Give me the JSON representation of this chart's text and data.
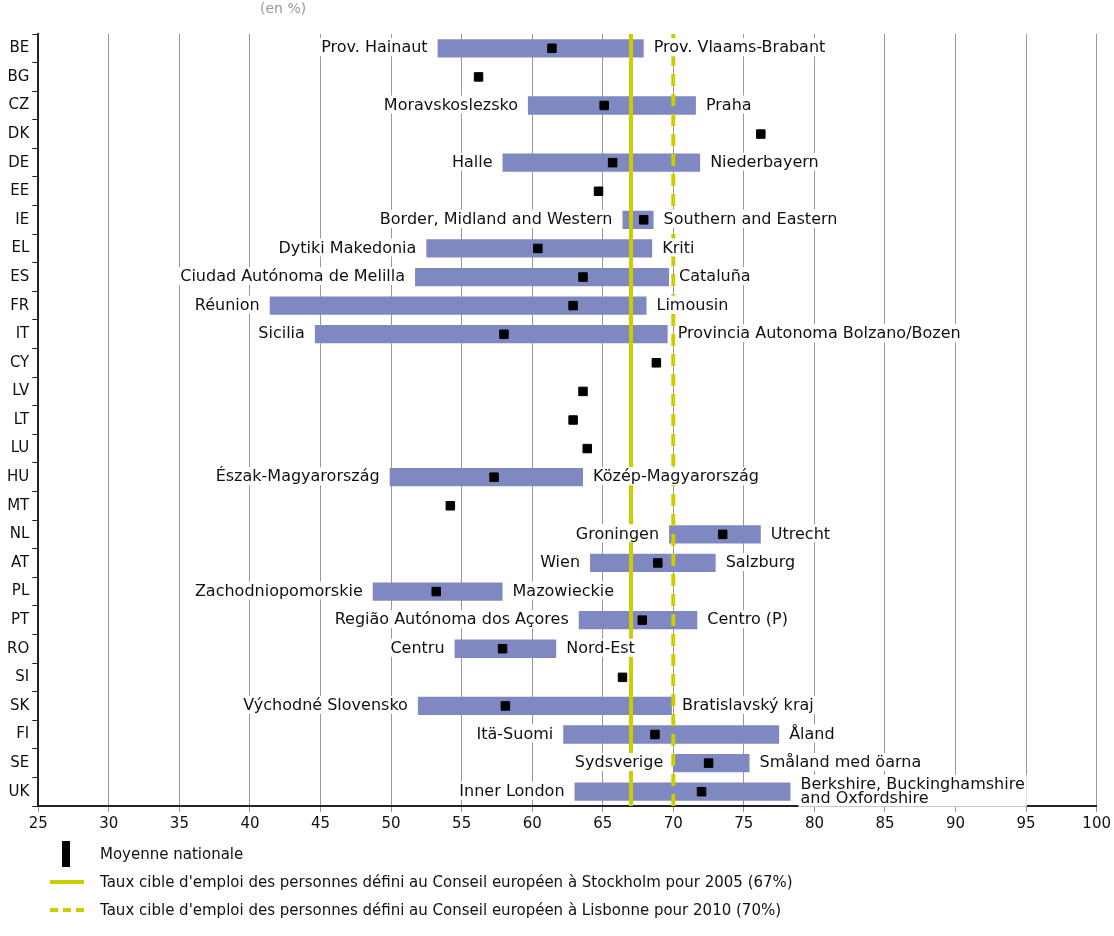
{
  "chart_data": {
    "type": "bar",
    "orientation": "horizontal",
    "title": "(en %)",
    "categories": [
      "BE",
      "BG",
      "CZ",
      "DK",
      "DE",
      "EE",
      "IE",
      "EL",
      "ES",
      "FR",
      "IT",
      "CY",
      "LV",
      "LT",
      "LU",
      "HU",
      "MT",
      "NL",
      "AT",
      "PL",
      "PT",
      "RO",
      "SI",
      "SK",
      "FI",
      "SE",
      "UK"
    ],
    "series": [
      {
        "type": "bar",
        "color": "#7f88c0",
        "base": [
          53.3,
          null,
          59.7,
          null,
          57.9,
          null,
          66.4,
          52.5,
          51.7,
          41.4,
          44.6,
          null,
          null,
          null,
          null,
          49.9,
          null,
          69.7,
          64.1,
          48.7,
          63.3,
          54.5,
          null,
          51.9,
          62.2,
          70.0,
          63.0
        ],
        "values": [
          14.6,
          null,
          11.9,
          null,
          14.0,
          null,
          2.2,
          16.0,
          18.0,
          26.7,
          25.0,
          null,
          null,
          null,
          null,
          13.7,
          null,
          6.5,
          8.9,
          9.2,
          8.4,
          7.2,
          null,
          18.0,
          15.3,
          5.4,
          15.3
        ]
      },
      {
        "type": "scatter",
        "name": "Moyenne nationale",
        "marker": "square",
        "color": "#000000",
        "x": [
          "BE",
          "BG",
          "CZ",
          "DK",
          "DE",
          "EE",
          "IE",
          "EL",
          "ES",
          "FR",
          "IT",
          "CY",
          "LV",
          "LT",
          "LU",
          "HU",
          "MT",
          "NL",
          "AT",
          "PL",
          "PT",
          "RO",
          "SI",
          "SK",
          "FI",
          "SE",
          "UK"
        ],
        "values": [
          61.4,
          56.2,
          65.1,
          76.2,
          65.7,
          64.7,
          67.9,
          60.4,
          63.6,
          62.9,
          58.0,
          68.8,
          63.6,
          62.9,
          63.9,
          57.3,
          54.2,
          73.5,
          68.9,
          53.2,
          67.8,
          57.9,
          66.4,
          58.1,
          68.7,
          72.5,
          72.0
        ]
      }
    ],
    "xlim": [
      25,
      100
    ],
    "xticks": [
      25,
      30,
      35,
      40,
      45,
      50,
      55,
      60,
      65,
      70,
      75,
      80,
      85,
      90,
      95,
      100
    ],
    "grid": "x",
    "legend": "bottom",
    "ref_lines": [
      {
        "axis": "x",
        "value": 67,
        "label": "Taux cible d'emploi des personnes défini au Conseil européen à Stockholm pour 2005 (67%)",
        "color": "#cccc00",
        "line_style": "solid"
      },
      {
        "axis": "x",
        "value": 70,
        "label": "Taux cible d'emploi des personnes défini au Conseil européen à Lisbonne pour 2010 (70%)",
        "color": "#cccc00",
        "line_style": "dashed"
      }
    ],
    "annotations": [
      {
        "text": "Prov. Hainaut",
        "x": 53.3,
        "y": "BE"
      },
      {
        "text": "Prov. Vlaams-Brabant",
        "x": 67.9,
        "y": "BE"
      },
      {
        "text": "Moravskoslezsko",
        "x": 59.7,
        "y": "CZ"
      },
      {
        "text": "Praha",
        "x": 71.6,
        "y": "CZ"
      },
      {
        "text": "Halle",
        "x": 57.9,
        "y": "DE"
      },
      {
        "text": "Niederbayern",
        "x": 71.9,
        "y": "DE"
      },
      {
        "text": "Border, Midland and Western",
        "x": 66.4,
        "y": "IE"
      },
      {
        "text": "Southern and Eastern",
        "x": 68.6,
        "y": "IE"
      },
      {
        "text": "Dytiki Makedonia",
        "x": 52.5,
        "y": "EL"
      },
      {
        "text": "Kriti",
        "x": 68.5,
        "y": "EL"
      },
      {
        "text": "Ciudad Autónoma de Melilla",
        "x": 51.7,
        "y": "ES"
      },
      {
        "text": "Cataluña",
        "x": 69.7,
        "y": "ES"
      },
      {
        "text": "Réunion",
        "x": 41.4,
        "y": "FR"
      },
      {
        "text": "Limousin",
        "x": 68.1,
        "y": "FR"
      },
      {
        "text": "Sicilia",
        "x": 44.6,
        "y": "IT"
      },
      {
        "text": "Provincia Autonoma Bolzano/Bozen",
        "x": 69.6,
        "y": "IT"
      },
      {
        "text": "Észak-Magyarország",
        "x": 49.9,
        "y": "HU"
      },
      {
        "text": "Közép-Magyarország",
        "x": 63.6,
        "y": "HU"
      },
      {
        "text": "Groningen",
        "x": 69.7,
        "y": "NL"
      },
      {
        "text": "Utrecht",
        "x": 76.2,
        "y": "NL"
      },
      {
        "text": "Wien",
        "x": 64.1,
        "y": "AT"
      },
      {
        "text": "Salzburg",
        "x": 73.0,
        "y": "AT"
      },
      {
        "text": "Zachodniopomorskie",
        "x": 48.7,
        "y": "PL"
      },
      {
        "text": "Mazowieckie",
        "x": 57.9,
        "y": "PL"
      },
      {
        "text": "Região Autónoma dos Açores",
        "x": 63.3,
        "y": "PT"
      },
      {
        "text": "Centro (P)",
        "x": 71.7,
        "y": "PT"
      },
      {
        "text": "Centru",
        "x": 54.5,
        "y": "RO"
      },
      {
        "text": "Nord-Est",
        "x": 61.7,
        "y": "RO"
      },
      {
        "text": "Východné Slovensko",
        "x": 51.9,
        "y": "SK"
      },
      {
        "text": "Bratislavský kraj",
        "x": 69.9,
        "y": "SK"
      },
      {
        "text": "Itä-Suomi",
        "x": 62.2,
        "y": "FI"
      },
      {
        "text": "Åland",
        "x": 77.5,
        "y": "FI"
      },
      {
        "text": "Sydsverige",
        "x": 70.0,
        "y": "SE"
      },
      {
        "text": "Småland med öarna",
        "x": 75.4,
        "y": "SE"
      },
      {
        "text": "Inner London",
        "x": 63.0,
        "y": "UK"
      },
      {
        "text": "Berkshire, Buckinghamshire\nand Oxfordshire",
        "x": 78.3,
        "y": "UK"
      }
    ]
  }
}
